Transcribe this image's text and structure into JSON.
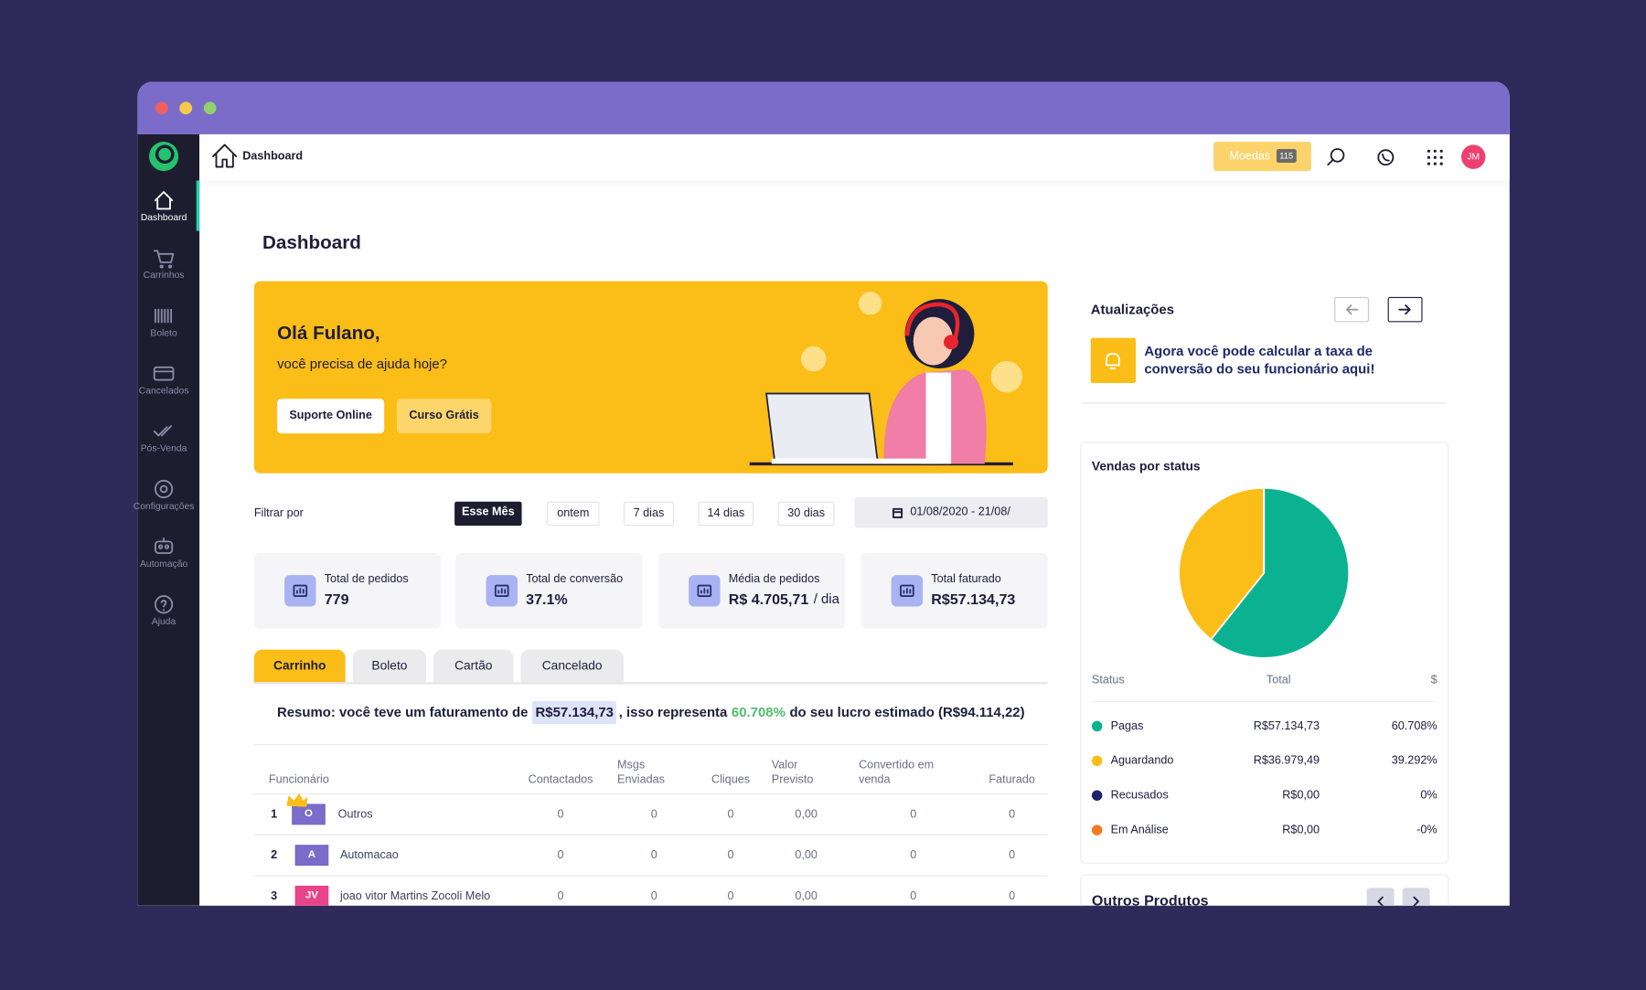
{
  "topbar": {
    "breadcrumb": "Dashboard",
    "coins_label": "Moedas",
    "coins_count": 115,
    "avatar": "JM"
  },
  "sidebar": [
    "Dashboard",
    "Carrinhos",
    "Boleto",
    "Cancelados",
    "Pós-Venda",
    "Configurações",
    "Automação",
    "Ajuda"
  ],
  "page_title": "Dashboard",
  "banner": {
    "greeting": "Olá Fulano,",
    "question": "você precisa de ajuda hoje?",
    "buttons": [
      "Suporte Online",
      "Curso Grátis"
    ]
  },
  "filter": {
    "label": "Filtrar por",
    "options": [
      "Esse Mês",
      "ontem",
      "7 dias",
      "14 dias",
      "30 dias"
    ],
    "date_range": "01/08/2020 - 21/08/"
  },
  "stats": [
    {
      "label": "Total de pedidos",
      "value": 779
    },
    {
      "label": "Total de conversão",
      "value": "37.1%"
    },
    {
      "label": "Média de pedidos",
      "value": "R$ 4.705,71",
      "unit": "/ dia"
    },
    {
      "label": "Total faturado",
      "value": "R$57.134,73"
    }
  ],
  "tabs": [
    "Carrinho",
    "Boleto",
    "Cartão",
    "Cancelado"
  ],
  "summary": {
    "prefix": "Resumo: você teve um faturamento de",
    "amount": "R$57.134,73",
    "middle": ", isso representa",
    "percent": "60.708%",
    "suffix": "do seu lucro estimado (R$94.114,22)"
  },
  "table": {
    "headers": [
      "Funcionário",
      "Contactados",
      "Msgs Enviadas",
      "Cliques",
      "Valor Previsto",
      "Convertido em venda",
      "Faturado"
    ],
    "rows": [
      [
        1,
        "O",
        "Outros",
        0,
        0,
        0,
        "0,00",
        0,
        0
      ],
      [
        2,
        "A",
        "Automacao",
        0,
        0,
        0,
        "0,00",
        0,
        0
      ],
      [
        3,
        "JV",
        "joao vitor Martins Zocoli Melo",
        0,
        0,
        0,
        "0,00",
        0,
        0
      ]
    ]
  },
  "updates": {
    "title": "Atualizações",
    "message": "Agora você pode calcular a taxa de conversão do seu funcionário aqui!"
  },
  "status_chart": {
    "type": "pie",
    "title": "Vendas por status",
    "headers": [
      "Status",
      "Total",
      "$"
    ],
    "categories": [
      "Pagas",
      "Aguardando",
      "Recusados",
      "Em Análise"
    ],
    "colors": [
      "#0bb291",
      "#fbbd17",
      "#1c2270",
      "#f47920"
    ],
    "values": [
      60.708,
      39.292,
      0,
      0
    ],
    "value_labels": [
      "60.708%",
      "39.292%",
      "0%",
      "-0%"
    ],
    "totals": [
      "R$57.134,73",
      "R$36.979,49",
      "R$0,00",
      "R$0,00"
    ]
  },
  "other_products": {
    "title": "Outros Produtos"
  }
}
